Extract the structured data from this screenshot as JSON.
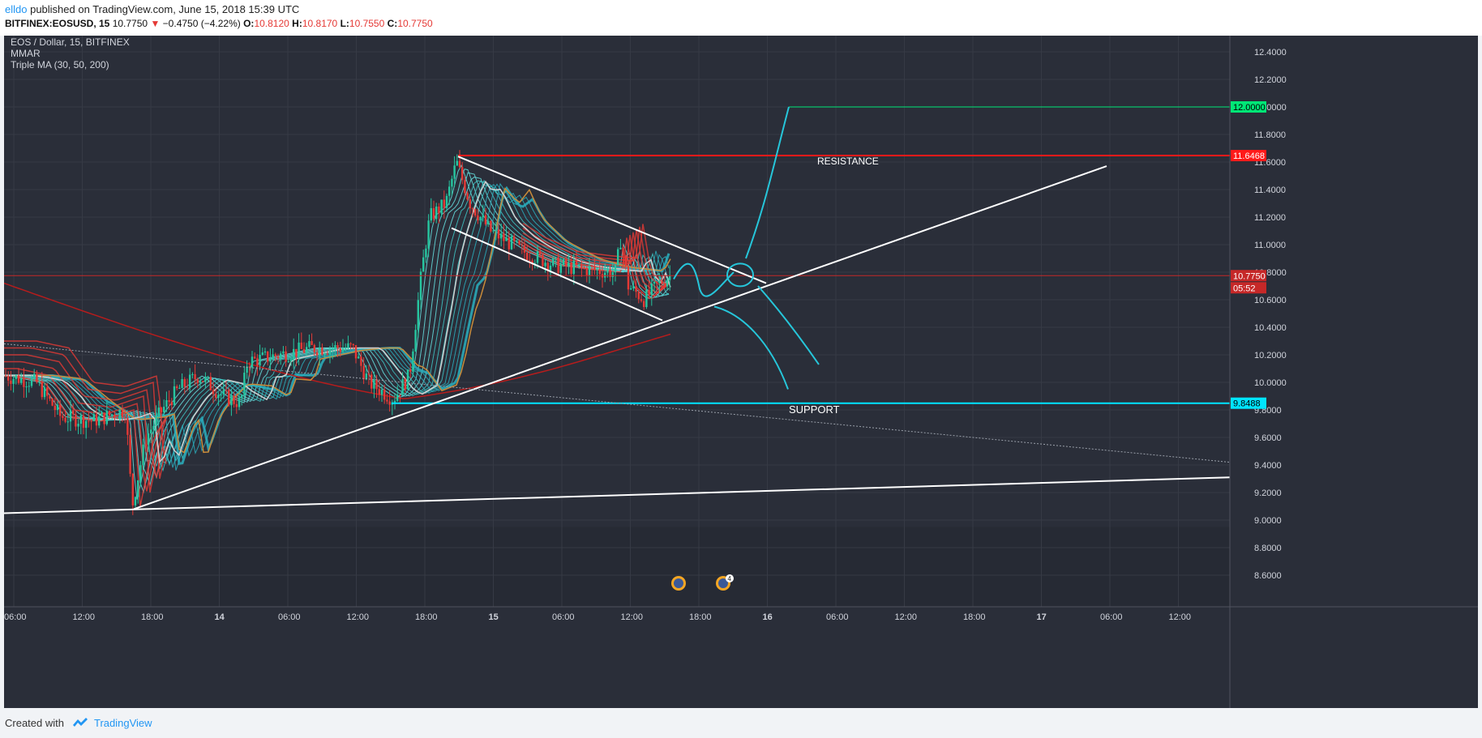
{
  "header": {
    "author": "elldo",
    "published_text": "published on TradingView.com, June 15, 2018 15:39 UTC",
    "symbol": "BITFINEX:EOSUSD, 15",
    "last": "10.7750",
    "change": "−0.4750 (−4.22%)",
    "o_label": "O:",
    "o_value": "10.8120",
    "h_label": "H:",
    "h_value": "10.8170",
    "l_label": "L:",
    "l_value": "10.7550",
    "c_label": "C:",
    "c_value": "10.7750"
  },
  "legend": {
    "title": "EOS / Dollar, 15, BITFINEX",
    "ind1": "MMAR",
    "ind2": "Triple MA (30, 50, 200)"
  },
  "annotations": {
    "resistance": "RESISTANCE",
    "support": "SUPPORT",
    "event_badge": "4"
  },
  "price_labels": {
    "resistance": "11.6468",
    "target": "12.0000",
    "current": "10.7750",
    "countdown": "05:52",
    "support": "9.8488"
  },
  "colors": {
    "background": "#2a2e39",
    "grid": "#363a45",
    "up_candle": "#26c6a0",
    "down_candle": "#e53935",
    "resistance": "#ff1a1a",
    "support": "#00e5ff",
    "target": "#00e676",
    "trendline": "#ffffff",
    "forecast": "#26c6da"
  },
  "chart_data": {
    "type": "line",
    "title": "EOS / Dollar, 15, BITFINEX",
    "xlabel": "",
    "ylabel": "",
    "ylim": [
      8.5,
      12.55
    ],
    "grid": true,
    "x_ticks": [
      "06:00",
      "12:00",
      "18:00",
      "14",
      "06:00",
      "12:00",
      "18:00",
      "15",
      "06:00",
      "12:00",
      "18:00",
      "16",
      "06:00",
      "12:00",
      "18:00",
      "17",
      "06:00",
      "12:00"
    ],
    "y_ticks": [
      "8.6000",
      "8.8000",
      "9.0000",
      "9.2000",
      "9.4000",
      "9.6000",
      "9.8000",
      "10.0000",
      "10.2000",
      "10.4000",
      "10.6000",
      "10.8000",
      "11.0000",
      "11.2000",
      "11.4000",
      "11.6000",
      "11.8000",
      "12.0000",
      "12.2000",
      "12.4000"
    ],
    "series": [
      {
        "name": "EOSUSD",
        "x": [
          "13 06:00",
          "13 12:00",
          "13 16:00",
          "13 18:00",
          "14 00:00",
          "14 06:00",
          "14 12:00",
          "14 18:00",
          "14 20:00",
          "14 22:00",
          "15 00:00",
          "15 06:00",
          "15 10:00",
          "15 12:00",
          "15 15:00"
        ],
        "values": [
          10.1,
          9.75,
          9.1,
          9.85,
          10.0,
          10.15,
          10.2,
          9.9,
          11.1,
          11.6,
          11.2,
          10.95,
          10.8,
          10.6,
          10.78
        ]
      }
    ],
    "levels": [
      {
        "label": "RESISTANCE",
        "value": 11.6468
      },
      {
        "label": "SUPPORT",
        "value": 9.8488
      },
      {
        "value": 12.0
      }
    ]
  }
}
